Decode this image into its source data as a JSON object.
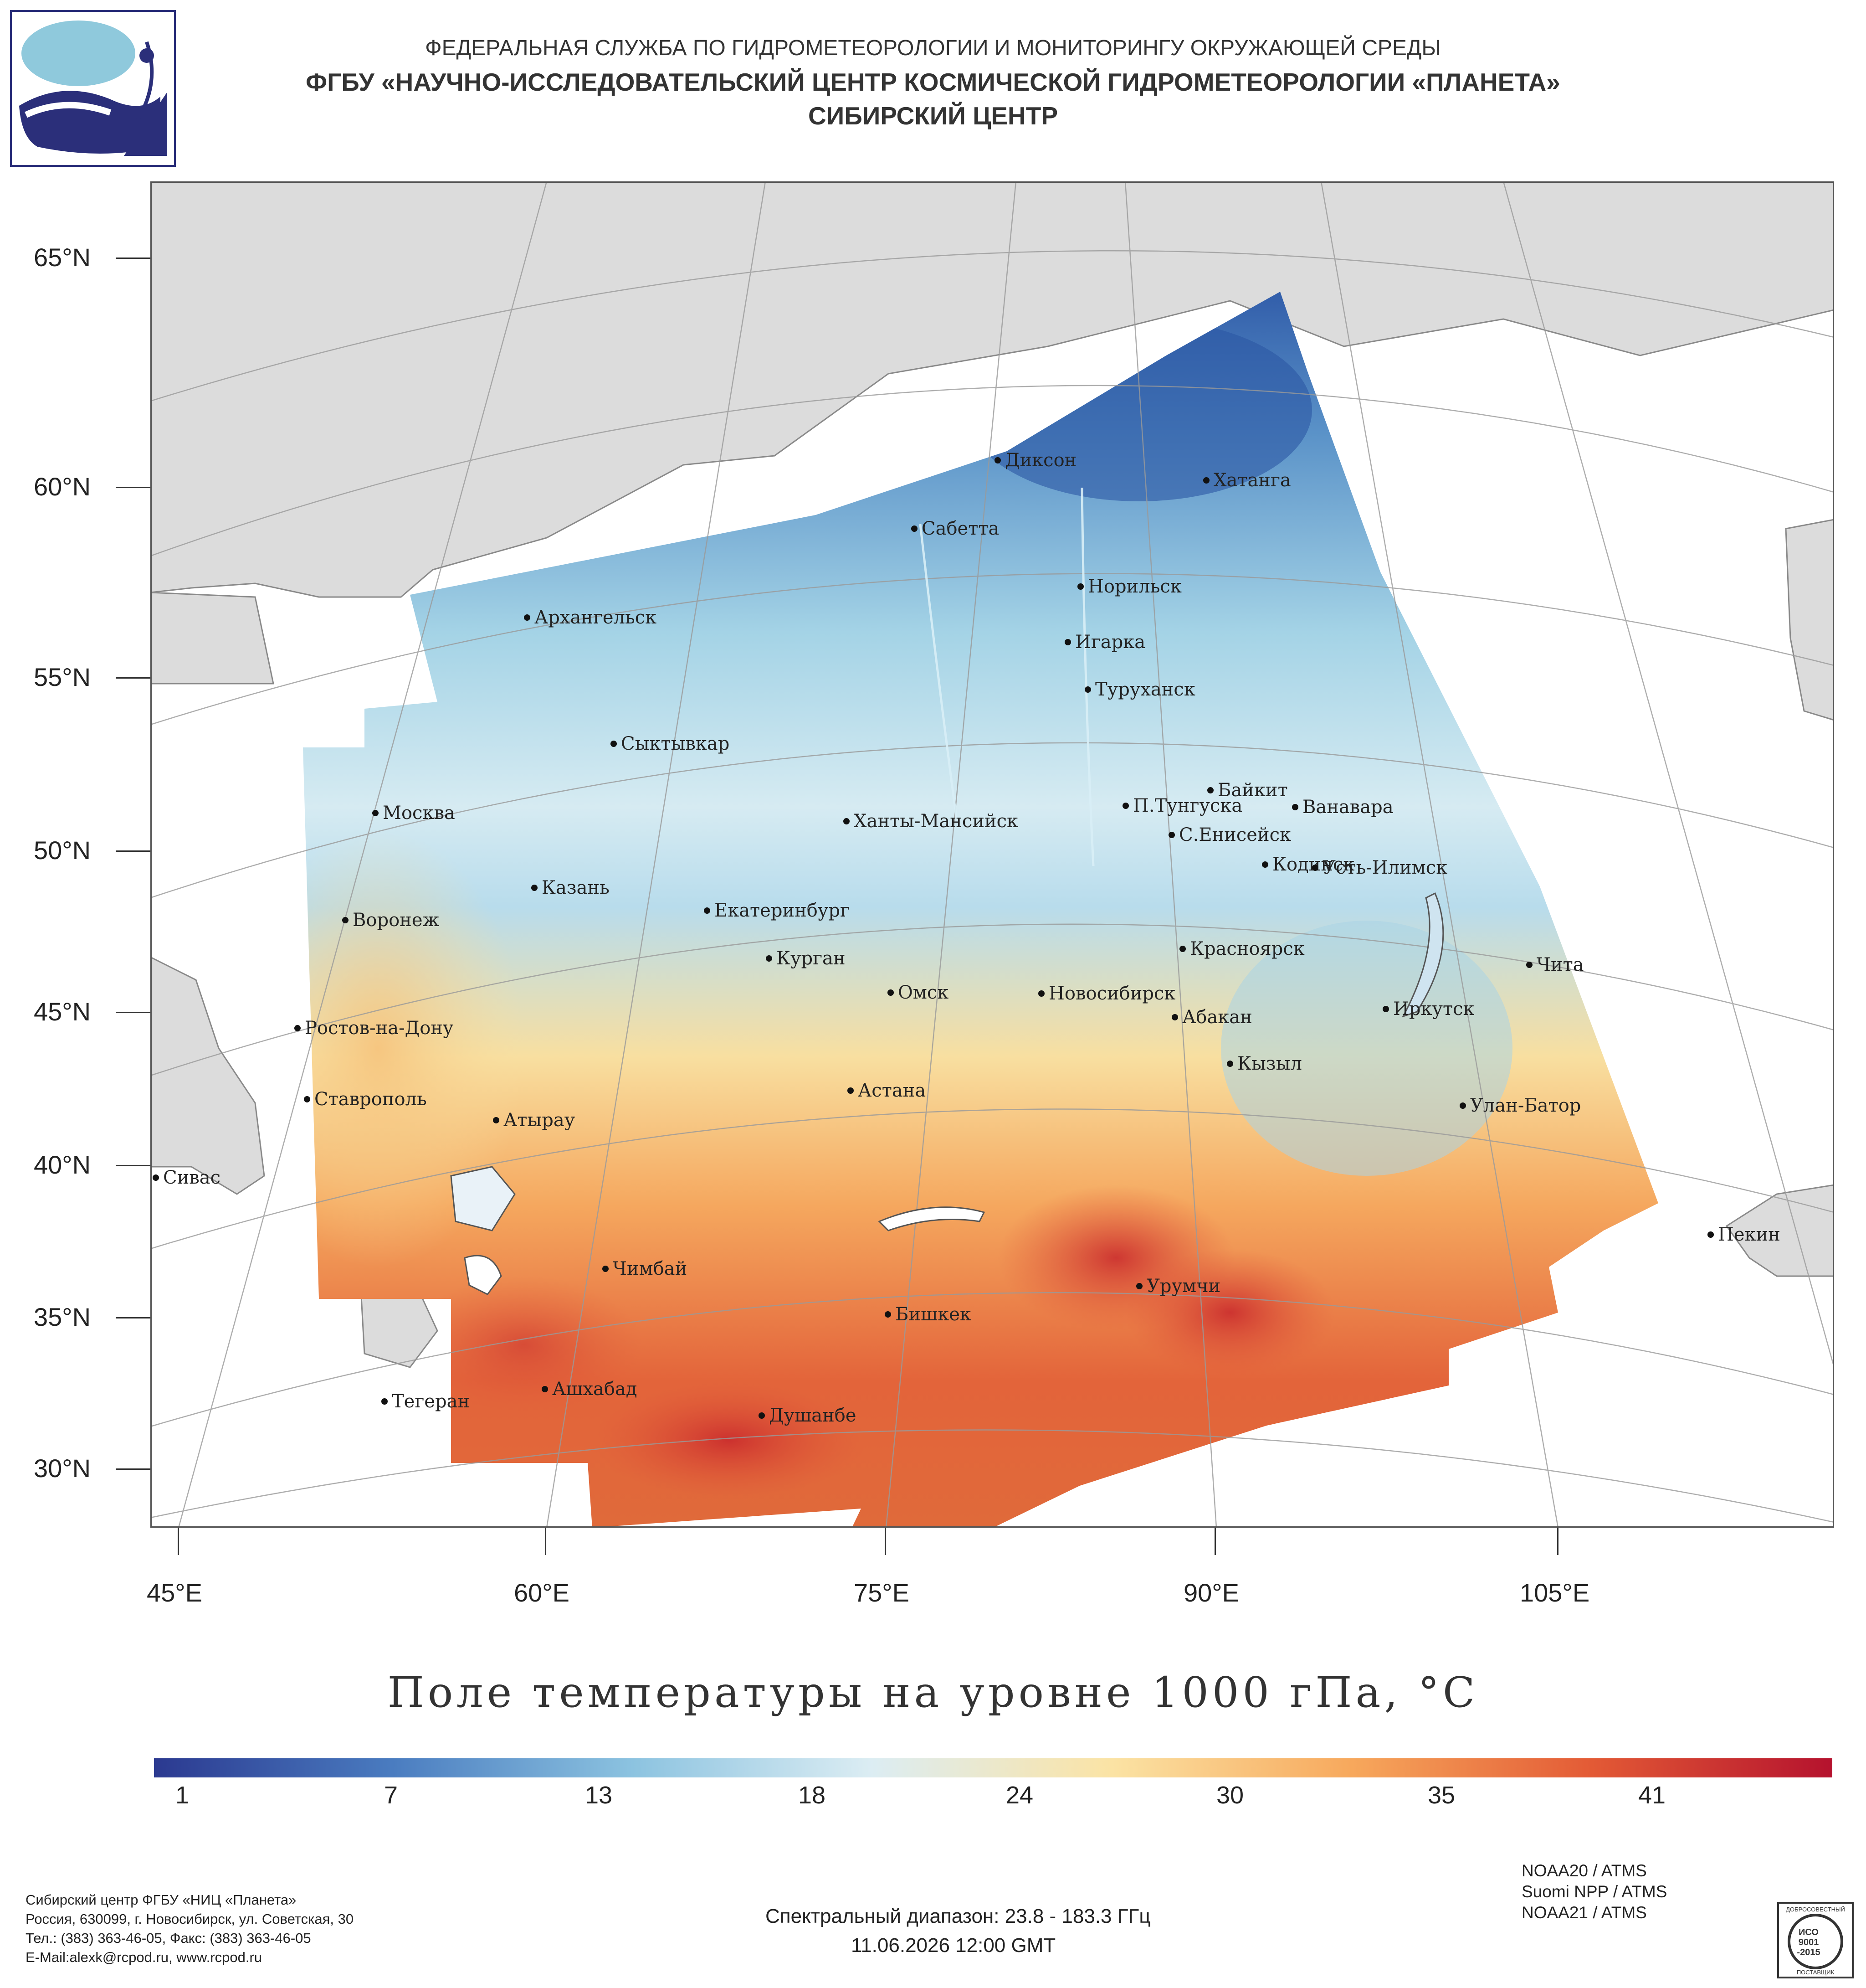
{
  "header": {
    "line1": "ФЕДЕРАЛЬНАЯ СЛУЖБА ПО ГИДРОМЕТЕОРОЛОГИИ И МОНИТОРИНГУ ОКРУЖАЮЩЕЙ СРЕДЫ",
    "line2": "ФГБУ «НАУЧНО-ИССЛЕДОВАТЕЛЬСКИЙ ЦЕНТР КОСМИЧЕСКОЙ ГИДРОМЕТЕОРОЛОГИИ «ПЛАНЕТА»",
    "line3": "СИБИРСКИЙ ЦЕНТР"
  },
  "map": {
    "lat_labels": [
      "65°N",
      "60°N",
      "55°N",
      "50°N",
      "45°N",
      "40°N",
      "35°N",
      "30°N"
    ],
    "lon_labels": [
      "45°E",
      "60°E",
      "75°E",
      "90°E",
      "105°E"
    ],
    "cities": [
      "Диксон",
      "Хатанга",
      "Сабетта",
      "Норильск",
      "Архангельск",
      "Игарка",
      "Туруханск",
      "Сыктывкар",
      "Байкит",
      "Москва",
      "П.Тунгуска",
      "Ванавара",
      "Ханты-Мансийск",
      "С.Енисейск",
      "Кодинск",
      "Усть-Илимск",
      "Казань",
      "Екатеринбург",
      "Воронеж",
      "Красноярск",
      "Курган",
      "Чита",
      "Омск",
      "Новосибирск",
      "Иркутск",
      "Абакан",
      "Ростов-на-Дону",
      "Кызыл",
      "Ставрополь",
      "Астана",
      "Улан-Батор",
      "Атырау",
      "Сивас",
      "Пекин",
      "Чимбай",
      "Урумчи",
      "Бишкек",
      "Ашхабад",
      "Тегеран",
      "Душанбе"
    ]
  },
  "map_title": "Поле температуры на уровне 1000 гПа, °C",
  "colorbar": {
    "min": 1,
    "max": 45,
    "colors": [
      "#2b3990",
      "#4a7cc0",
      "#8cc3e0",
      "#dcedf3",
      "#fbe3a4",
      "#f7a85c",
      "#e35a35",
      "#b5122e"
    ],
    "ticks": [
      "1",
      "7",
      "13",
      "18",
      "24",
      "30",
      "35",
      "41"
    ]
  },
  "footer": {
    "org_lines": [
      "Сибирский центр ФГБУ «НИЦ «Планета»",
      "Россия, 630099, г. Новосибирск, ул. Советская, 30",
      "Тел.: (383) 363-46-05, Факс: (383) 363-46-05",
      "E-Mail:alexk@rcpod.ru, www.rcpod.ru"
    ],
    "spectral": "Спектральный диапазон: 23.8 - 183.3 ГГц",
    "datetime": "11.06.2026 12:00 GMT",
    "sensors": [
      "NOAA20 / ATMS",
      "Suomi NPP / ATMS",
      "NOAA21 / ATMS"
    ],
    "iso_lines": [
      "ДОБРОСОВЕСТНЫЙ",
      "ИСО",
      "9001",
      "-2015",
      "ПОСТАВЩИК"
    ]
  }
}
